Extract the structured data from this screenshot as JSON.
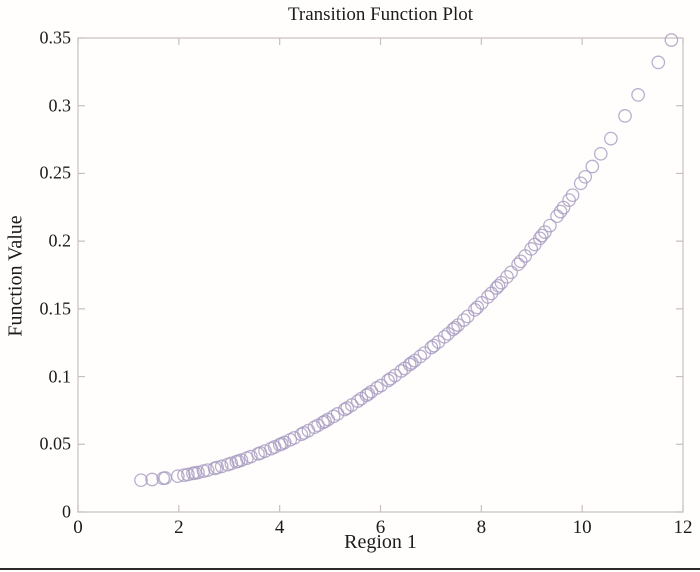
{
  "figure": {
    "title": "Transition Function Plot",
    "xlabel": "Region 1",
    "ylabel": "Function Value",
    "background_color": "#fffefd",
    "axis_color": "#c9bfbf",
    "text_color": "#1c1c1c",
    "marker_color": "#a89bc0"
  },
  "chart_data": {
    "type": "scatter",
    "title": "Transition Function Plot",
    "xlabel": "Region 1",
    "ylabel": "Function Value",
    "xlim": [
      0,
      12
    ],
    "ylim": [
      0,
      0.35
    ],
    "xticks": [
      0,
      2,
      4,
      6,
      8,
      10,
      12
    ],
    "xtick_labels": [
      "0",
      "2",
      "4",
      "6",
      "8",
      "10",
      "12"
    ],
    "yticks": [
      0,
      0.05,
      0.1,
      0.15,
      0.2,
      0.25,
      0.3,
      0.35
    ],
    "ytick_labels": [
      "0",
      "0.05",
      "0.1",
      "0.15",
      "0.2",
      "0.25",
      "0.3",
      "0.35"
    ],
    "grid": false,
    "legend": null,
    "marker": "open-circle",
    "points": [
      [
        1.25,
        0.0235
      ],
      [
        1.47,
        0.024
      ],
      [
        1.69,
        0.0249
      ],
      [
        1.73,
        0.0251
      ],
      [
        1.98,
        0.0264
      ],
      [
        2.1,
        0.0272
      ],
      [
        2.18,
        0.0277
      ],
      [
        2.28,
        0.0285
      ],
      [
        2.32,
        0.0288
      ],
      [
        2.38,
        0.0292
      ],
      [
        2.49,
        0.0302
      ],
      [
        2.57,
        0.0309
      ],
      [
        2.71,
        0.0322
      ],
      [
        2.76,
        0.0328
      ],
      [
        2.85,
        0.0337
      ],
      [
        2.97,
        0.035
      ],
      [
        3.04,
        0.0359
      ],
      [
        3.14,
        0.0371
      ],
      [
        3.18,
        0.0375
      ],
      [
        3.24,
        0.0383
      ],
      [
        3.35,
        0.0398
      ],
      [
        3.43,
        0.0409
      ],
      [
        3.57,
        0.0429
      ],
      [
        3.62,
        0.0436
      ],
      [
        3.71,
        0.045
      ],
      [
        3.83,
        0.0468
      ],
      [
        3.9,
        0.048
      ],
      [
        4.0,
        0.0497
      ],
      [
        4.04,
        0.0503
      ],
      [
        4.1,
        0.0514
      ],
      [
        4.21,
        0.0533
      ],
      [
        4.29,
        0.0547
      ],
      [
        4.43,
        0.0574
      ],
      [
        4.48,
        0.0584
      ],
      [
        4.57,
        0.0601
      ],
      [
        4.69,
        0.0626
      ],
      [
        4.76,
        0.064
      ],
      [
        4.86,
        0.0661
      ],
      [
        4.9,
        0.067
      ],
      [
        4.96,
        0.0683
      ],
      [
        5.07,
        0.0706
      ],
      [
        5.15,
        0.0724
      ],
      [
        5.29,
        0.0757
      ],
      [
        5.34,
        0.0768
      ],
      [
        5.43,
        0.079
      ],
      [
        5.55,
        0.0819
      ],
      [
        5.62,
        0.0837
      ],
      [
        5.72,
        0.0862
      ],
      [
        5.76,
        0.0871
      ],
      [
        5.82,
        0.0888
      ],
      [
        5.93,
        0.0916
      ],
      [
        6.01,
        0.0934
      ],
      [
        6.15,
        0.0971
      ],
      [
        6.2,
        0.0984
      ],
      [
        6.29,
        0.1008
      ],
      [
        6.41,
        0.1041
      ],
      [
        6.48,
        0.106
      ],
      [
        6.58,
        0.1089
      ],
      [
        6.62,
        0.1101
      ],
      [
        6.68,
        0.1118
      ],
      [
        6.79,
        0.1149
      ],
      [
        6.87,
        0.1173
      ],
      [
        7.01,
        0.1215
      ],
      [
        7.06,
        0.1229
      ],
      [
        7.15,
        0.1256
      ],
      [
        7.27,
        0.1294
      ],
      [
        7.34,
        0.1316
      ],
      [
        7.44,
        0.1348
      ],
      [
        7.48,
        0.1361
      ],
      [
        7.54,
        0.138
      ],
      [
        7.65,
        0.1417
      ],
      [
        7.73,
        0.1444
      ],
      [
        7.87,
        0.1493
      ],
      [
        7.92,
        0.1511
      ],
      [
        8.01,
        0.1544
      ],
      [
        8.13,
        0.1588
      ],
      [
        8.2,
        0.1614
      ],
      [
        8.3,
        0.1654
      ],
      [
        8.34,
        0.167
      ],
      [
        8.4,
        0.1693
      ],
      [
        8.51,
        0.1737
      ],
      [
        8.59,
        0.177
      ],
      [
        8.73,
        0.1829
      ],
      [
        8.78,
        0.1851
      ],
      [
        8.87,
        0.189
      ],
      [
        8.99,
        0.1943
      ],
      [
        9.06,
        0.1975
      ],
      [
        9.16,
        0.2021
      ],
      [
        9.2,
        0.2041
      ],
      [
        9.26,
        0.2067
      ],
      [
        9.36,
        0.2115
      ],
      [
        9.5,
        0.2184
      ],
      [
        9.57,
        0.2218
      ],
      [
        9.63,
        0.2248
      ],
      [
        9.74,
        0.2303
      ],
      [
        9.81,
        0.2339
      ],
      [
        9.97,
        0.2427
      ],
      [
        10.06,
        0.2475
      ],
      [
        10.2,
        0.2551
      ],
      [
        10.37,
        0.2645
      ],
      [
        10.57,
        0.2757
      ],
      [
        10.85,
        0.2925
      ],
      [
        11.11,
        0.308
      ],
      [
        11.51,
        0.332
      ],
      [
        11.77,
        0.3485
      ]
    ]
  }
}
